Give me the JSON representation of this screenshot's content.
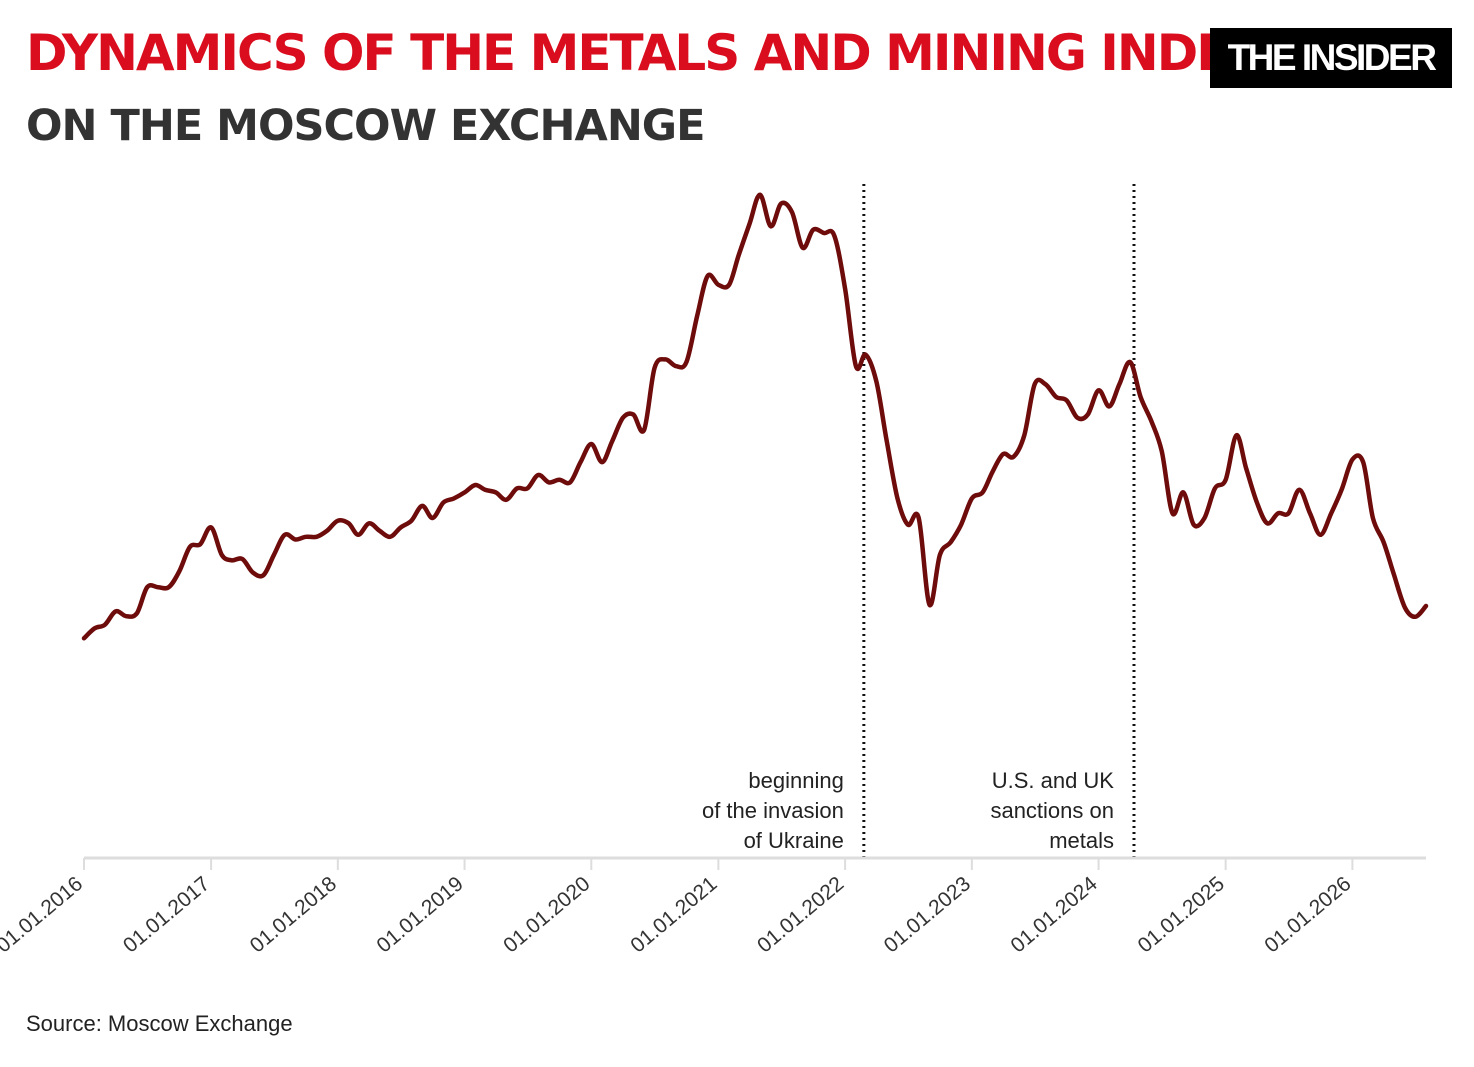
{
  "header": {
    "title": "DYNAMICS OF THE METALS AND MINING INDEX",
    "subtitle": "ON THE MOSCOW EXCHANGE",
    "logo": "THE INSIDER"
  },
  "footer": {
    "source": "Source: Moscow Exchange"
  },
  "colors": {
    "title": "#d90d1e",
    "subtitle": "#333333",
    "line": "#6e0b0b",
    "axis": "#dddddd"
  },
  "chart_data": {
    "type": "line",
    "title": "DYNAMICS OF THE METALS AND MINING INDEX",
    "subtitle": "ON THE MOSCOW EXCHANGE",
    "xlabel": "",
    "ylabel": "",
    "x_axis": "date",
    "xlim": [
      "2016-01-01",
      "2026-08-01"
    ],
    "y_axis_labels": "none",
    "ylim": [
      0,
      100
    ],
    "grid": false,
    "legend": "none",
    "tick_labels": [
      "01.01.2016",
      "01.01.2017",
      "01.01.2018",
      "01.01.2019",
      "01.01.2020",
      "01.01.2021",
      "01.01.2022",
      "01.01.2023",
      "01.01.2024",
      "01.01.2025",
      "01.01.2026"
    ],
    "tick_dates": [
      "2016-01-01",
      "2017-01-01",
      "2018-01-01",
      "2019-01-01",
      "2020-01-01",
      "2021-01-01",
      "2022-01-01",
      "2023-01-01",
      "2024-01-01",
      "2025-01-01",
      "2026-01-01"
    ],
    "series": [
      {
        "points": [
          [
            "2016-01-01",
            32.7
          ],
          [
            "2016-02-01",
            34.2
          ],
          [
            "2016-03-01",
            34.7
          ],
          [
            "2016-04-01",
            36.7
          ],
          [
            "2016-05-01",
            36.0
          ],
          [
            "2016-06-01",
            36.4
          ],
          [
            "2016-07-01",
            40.3
          ],
          [
            "2016-08-01",
            40.3
          ],
          [
            "2016-09-01",
            40.3
          ],
          [
            "2016-10-01",
            42.6
          ],
          [
            "2016-11-01",
            46.3
          ],
          [
            "2016-12-01",
            46.7
          ],
          [
            "2017-01-01",
            49.2
          ],
          [
            "2017-02-01",
            45.1
          ],
          [
            "2017-03-01",
            44.3
          ],
          [
            "2017-04-01",
            44.5
          ],
          [
            "2017-05-01",
            42.5
          ],
          [
            "2017-06-01",
            42.1
          ],
          [
            "2017-07-01",
            45.1
          ],
          [
            "2017-08-01",
            48.1
          ],
          [
            "2017-09-01",
            47.4
          ],
          [
            "2017-10-01",
            47.8
          ],
          [
            "2017-11-01",
            47.8
          ],
          [
            "2017-12-01",
            48.7
          ],
          [
            "2018-01-01",
            50.2
          ],
          [
            "2018-02-01",
            49.8
          ],
          [
            "2018-03-01",
            48.1
          ],
          [
            "2018-04-01",
            49.8
          ],
          [
            "2018-05-01",
            48.7
          ],
          [
            "2018-06-01",
            47.8
          ],
          [
            "2018-07-01",
            49.2
          ],
          [
            "2018-08-01",
            50.2
          ],
          [
            "2018-09-01",
            52.4
          ],
          [
            "2018-10-01",
            50.6
          ],
          [
            "2018-11-01",
            52.9
          ],
          [
            "2018-12-01",
            53.5
          ],
          [
            "2019-01-01",
            54.4
          ],
          [
            "2019-02-01",
            55.5
          ],
          [
            "2019-03-01",
            54.8
          ],
          [
            "2019-04-01",
            54.4
          ],
          [
            "2019-05-01",
            53.3
          ],
          [
            "2019-06-01",
            55.0
          ],
          [
            "2019-07-01",
            55.0
          ],
          [
            "2019-08-01",
            57.0
          ],
          [
            "2019-09-01",
            55.9
          ],
          [
            "2019-10-01",
            56.3
          ],
          [
            "2019-11-01",
            55.9
          ],
          [
            "2019-12-01",
            58.9
          ],
          [
            "2020-01-01",
            61.6
          ],
          [
            "2020-02-01",
            58.9
          ],
          [
            "2020-03-01",
            62.0
          ],
          [
            "2020-04-01",
            65.5
          ],
          [
            "2020-05-01",
            66.0
          ],
          [
            "2020-06-01",
            63.7
          ],
          [
            "2020-07-01",
            72.9
          ],
          [
            "2020-08-01",
            74.2
          ],
          [
            "2020-09-01",
            73.2
          ],
          [
            "2020-10-01",
            73.8
          ],
          [
            "2020-11-01",
            80.7
          ],
          [
            "2020-12-01",
            86.6
          ],
          [
            "2021-01-01",
            85.3
          ],
          [
            "2021-02-01",
            85.3
          ],
          [
            "2021-03-01",
            89.8
          ],
          [
            "2021-04-01",
            94.4
          ],
          [
            "2021-05-01",
            98.7
          ],
          [
            "2021-06-01",
            94.0
          ],
          [
            "2021-07-01",
            97.4
          ],
          [
            "2021-08-01",
            96.1
          ],
          [
            "2021-09-01",
            90.8
          ],
          [
            "2021-10-01",
            93.5
          ],
          [
            "2021-11-01",
            93.0
          ],
          [
            "2021-12-01",
            92.6
          ],
          [
            "2022-01-01",
            84.7
          ],
          [
            "2022-02-01",
            73.2
          ],
          [
            "2022-03-01",
            74.9
          ],
          [
            "2022-04-01",
            70.9
          ],
          [
            "2022-05-01",
            62.0
          ],
          [
            "2022-06-01",
            53.5
          ],
          [
            "2022-07-01",
            49.6
          ],
          [
            "2022-08-01",
            50.6
          ],
          [
            "2022-09-01",
            37.7
          ],
          [
            "2022-10-01",
            45.1
          ],
          [
            "2022-11-01",
            47.0
          ],
          [
            "2022-12-01",
            49.6
          ],
          [
            "2023-01-01",
            53.5
          ],
          [
            "2023-02-01",
            54.4
          ],
          [
            "2023-03-01",
            57.4
          ],
          [
            "2023-04-01",
            60.1
          ],
          [
            "2023-05-01",
            59.7
          ],
          [
            "2023-06-01",
            62.9
          ],
          [
            "2023-07-01",
            70.5
          ],
          [
            "2023-08-01",
            70.5
          ],
          [
            "2023-09-01",
            68.6
          ],
          [
            "2023-10-01",
            68.1
          ],
          [
            "2023-11-01",
            65.5
          ],
          [
            "2023-12-01",
            66.0
          ],
          [
            "2024-01-01",
            69.6
          ],
          [
            "2024-02-01",
            67.2
          ],
          [
            "2024-03-01",
            70.5
          ],
          [
            "2024-04-01",
            73.8
          ],
          [
            "2024-05-01",
            68.6
          ],
          [
            "2024-06-01",
            65.0
          ],
          [
            "2024-07-01",
            60.5
          ],
          [
            "2024-08-01",
            51.3
          ],
          [
            "2024-09-01",
            54.4
          ],
          [
            "2024-10-01",
            49.6
          ],
          [
            "2024-11-01",
            50.6
          ],
          [
            "2024-12-01",
            55.0
          ],
          [
            "2025-01-01",
            56.3
          ],
          [
            "2025-02-01",
            62.9
          ],
          [
            "2025-03-01",
            58.0
          ],
          [
            "2025-04-01",
            52.9
          ],
          [
            "2025-05-01",
            49.8
          ],
          [
            "2025-06-01",
            51.3
          ],
          [
            "2025-07-01",
            51.3
          ],
          [
            "2025-08-01",
            54.8
          ],
          [
            "2025-09-01",
            51.3
          ],
          [
            "2025-10-01",
            48.1
          ],
          [
            "2025-11-01",
            51.3
          ],
          [
            "2025-12-01",
            54.8
          ],
          [
            "2026-01-01",
            59.3
          ],
          [
            "2026-02-01",
            58.9
          ],
          [
            "2026-03-01",
            50.6
          ],
          [
            "2026-04-01",
            47.0
          ],
          [
            "2026-05-01",
            42.1
          ],
          [
            "2026-06-01",
            37.3
          ],
          [
            "2026-07-01",
            35.9
          ],
          [
            "2026-08-01",
            37.5
          ]
        ]
      }
    ],
    "annotations": [
      {
        "date": "2022-02-24",
        "lines": [
          "beginning",
          "of the invasion",
          "of Ukraine"
        ],
        "style": "dotted-vertical"
      },
      {
        "date": "2024-04-12",
        "lines": [
          "U.S. and UK",
          "sanctions on",
          "metals"
        ],
        "style": "dotted-vertical"
      }
    ]
  }
}
